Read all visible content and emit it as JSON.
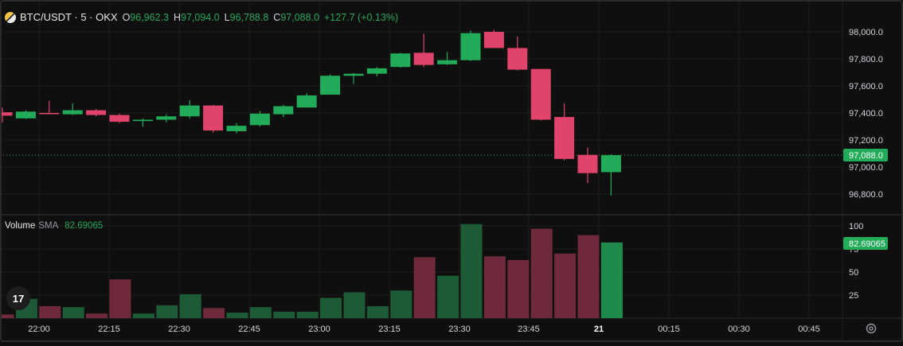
{
  "legend": {
    "symbol": "BTC/USDT · 5 · OKX",
    "open_label": "O",
    "open": "96,962.3",
    "high_label": "H",
    "high": "97,094.0",
    "low_label": "L",
    "low": "96,788.8",
    "close_label": "C",
    "close": "97,088.0",
    "change": "+127.7 (+0.13%)"
  },
  "volume_legend": {
    "title": "Volume",
    "study": "SMA",
    "value": "82.69065"
  },
  "price_axis": {
    "ticks": [
      "98,000.0",
      "97,800.0",
      "97,600.0",
      "97,400.0",
      "97,200.0",
      "97,000.0",
      "96,800.0"
    ],
    "last_price_label": "97,088.0"
  },
  "volume_axis": {
    "ticks": [
      "100",
      "75",
      "50",
      "25"
    ],
    "sma_label": "82.69065"
  },
  "time_axis": {
    "ticks": [
      "22:00",
      "22:15",
      "22:30",
      "22:45",
      "23:00",
      "23:15",
      "23:30",
      "23:45",
      "21",
      "00:15",
      "00:30",
      "00:45"
    ]
  },
  "colors": {
    "up": "#22ab58",
    "down": "#e0446b",
    "vol_up": "#1d5a36",
    "vol_down": "#6e2a3b",
    "background": "#0f0f0f"
  },
  "icons": {
    "logo": "tradingview-logo-icon",
    "settings": "gear-icon"
  },
  "chart_data": {
    "type": "candlestick",
    "interval_minutes": 5,
    "price_range": [
      96700,
      98100
    ],
    "volume_range": [
      0,
      110
    ],
    "candles": [
      {
        "time": "21:55",
        "open": 97405,
        "high": 97440,
        "low": 97330,
        "close": 97380,
        "volume": 4
      },
      {
        "time": "22:00",
        "open": 97360,
        "high": 97420,
        "low": 97355,
        "close": 97410,
        "volume": 21
      },
      {
        "time": "22:05",
        "open": 97400,
        "high": 97490,
        "low": 97390,
        "close": 97395,
        "volume": 13
      },
      {
        "time": "22:10",
        "open": 97390,
        "high": 97470,
        "low": 97385,
        "close": 97420,
        "volume": 12
      },
      {
        "time": "22:15",
        "open": 97420,
        "high": 97430,
        "low": 97375,
        "close": 97385,
        "volume": 5
      },
      {
        "time": "22:20",
        "open": 97385,
        "high": 97395,
        "low": 97325,
        "close": 97335,
        "volume": 42
      },
      {
        "time": "22:25",
        "open": 97340,
        "high": 97360,
        "low": 97300,
        "close": 97350,
        "volume": 5
      },
      {
        "time": "22:30",
        "open": 97350,
        "high": 97390,
        "low": 97330,
        "close": 97375,
        "volume": 14
      },
      {
        "time": "22:35",
        "open": 97375,
        "high": 97495,
        "low": 97360,
        "close": 97455,
        "volume": 26
      },
      {
        "time": "22:40",
        "open": 97455,
        "high": 97460,
        "low": 97255,
        "close": 97270,
        "volume": 11
      },
      {
        "time": "22:45",
        "open": 97265,
        "high": 97325,
        "low": 97250,
        "close": 97305,
        "volume": 6
      },
      {
        "time": "22:50",
        "open": 97310,
        "high": 97415,
        "low": 97300,
        "close": 97395,
        "volume": 12
      },
      {
        "time": "22:55",
        "open": 97390,
        "high": 97460,
        "low": 97370,
        "close": 97450,
        "volume": 7
      },
      {
        "time": "23:00",
        "open": 97440,
        "high": 97545,
        "low": 97440,
        "close": 97530,
        "volume": 7
      },
      {
        "time": "23:05",
        "open": 97535,
        "high": 97685,
        "low": 97535,
        "close": 97675,
        "volume": 22
      },
      {
        "time": "23:10",
        "open": 97675,
        "high": 97695,
        "low": 97615,
        "close": 97690,
        "volume": 28
      },
      {
        "time": "23:15",
        "open": 97690,
        "high": 97740,
        "low": 97670,
        "close": 97730,
        "volume": 13
      },
      {
        "time": "23:20",
        "open": 97740,
        "high": 97845,
        "low": 97735,
        "close": 97840,
        "volume": 30
      },
      {
        "time": "23:25",
        "open": 97845,
        "high": 97985,
        "low": 97740,
        "close": 97755,
        "volume": 66
      },
      {
        "time": "23:30",
        "open": 97760,
        "high": 97850,
        "low": 97755,
        "close": 97790,
        "volume": 46
      },
      {
        "time": "23:35",
        "open": 97790,
        "high": 98010,
        "low": 97785,
        "close": 97990,
        "volume": 102
      },
      {
        "time": "23:40",
        "open": 98000,
        "high": 98015,
        "low": 97885,
        "close": 97880,
        "volume": 67
      },
      {
        "time": "23:45",
        "open": 97880,
        "high": 97965,
        "low": 97715,
        "close": 97720,
        "volume": 63
      },
      {
        "time": "23:50",
        "open": 97725,
        "high": 97725,
        "low": 97345,
        "close": 97350,
        "volume": 97
      },
      {
        "time": "23:55",
        "open": 97370,
        "high": 97470,
        "low": 97050,
        "close": 97060,
        "volume": 70
      },
      {
        "time": "00:00",
        "open": 97090,
        "high": 97145,
        "low": 96880,
        "close": 96955,
        "volume": 90
      },
      {
        "time": "00:05",
        "open": 96962.3,
        "high": 97094.0,
        "low": 96788.8,
        "close": 97088.0,
        "volume": 82
      }
    ]
  }
}
